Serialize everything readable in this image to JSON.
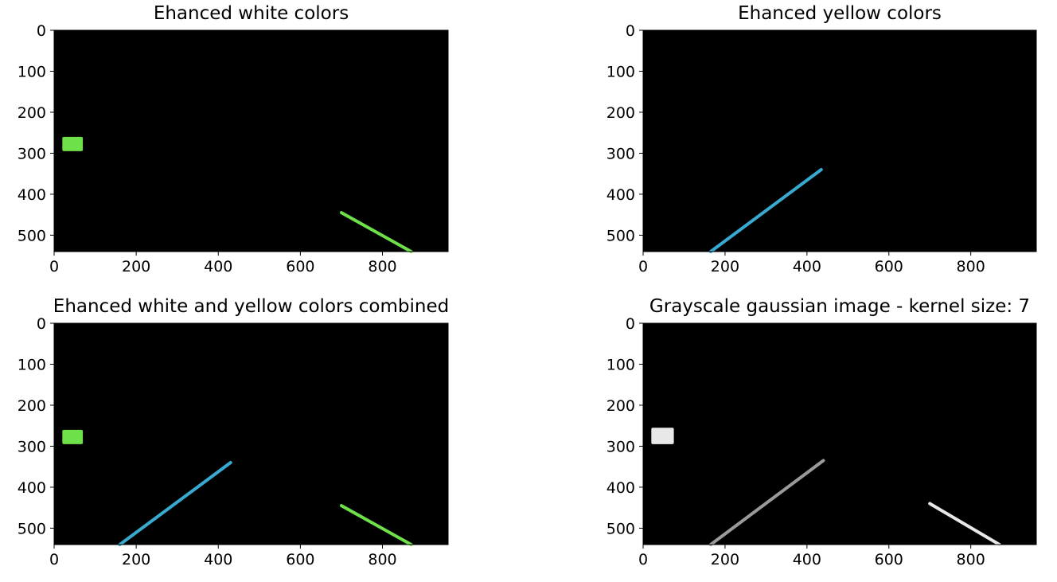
{
  "figure": {
    "panels": [
      {
        "title": "Ehanced white colors",
        "xticks": [
          "0",
          "200",
          "400",
          "600",
          "800"
        ],
        "yticks": [
          "0",
          "100",
          "200",
          "300",
          "400",
          "500"
        ]
      },
      {
        "title": "Ehanced yellow colors",
        "xticks": [
          "0",
          "200",
          "400",
          "600",
          "800"
        ],
        "yticks": [
          "0",
          "100",
          "200",
          "300",
          "400",
          "500"
        ]
      },
      {
        "title": "Ehanced white and yellow colors combined",
        "xticks": [
          "0",
          "200",
          "400",
          "600",
          "800"
        ],
        "yticks": [
          "0",
          "100",
          "200",
          "300",
          "400",
          "500"
        ]
      },
      {
        "title": "Grayscale gaussian image - kernel size: 7",
        "xticks": [
          "0",
          "200",
          "400",
          "600",
          "800"
        ],
        "yticks": [
          "0",
          "100",
          "200",
          "300",
          "400",
          "500"
        ]
      }
    ]
  },
  "chart_data": [
    {
      "type": "image",
      "title": "Ehanced white colors",
      "xlim": [
        0,
        960
      ],
      "ylim": [
        540,
        0
      ],
      "background": "#000000",
      "colors": {
        "white_mask": "#6ee04a"
      },
      "features": [
        {
          "kind": "lane_line",
          "color": "white_mask",
          "from": [
            700,
            445
          ],
          "to": [
            870,
            540
          ]
        },
        {
          "kind": "blob",
          "color": "white_mask",
          "x": [
            20,
            70
          ],
          "y": [
            260,
            295
          ]
        }
      ]
    },
    {
      "type": "image",
      "title": "Ehanced yellow colors",
      "xlim": [
        0,
        960
      ],
      "ylim": [
        540,
        0
      ],
      "background": "#000000",
      "colors": {
        "yellow_mask": "#38a9cf"
      },
      "features": [
        {
          "kind": "lane_line",
          "color": "yellow_mask",
          "from": [
            165,
            540
          ],
          "to": [
            435,
            340
          ]
        }
      ]
    },
    {
      "type": "image",
      "title": "Ehanced white and yellow colors combined",
      "xlim": [
        0,
        960
      ],
      "ylim": [
        540,
        0
      ],
      "background": "#000000",
      "colors": {
        "white_mask": "#6ee04a",
        "yellow_mask": "#38a9cf"
      },
      "features": [
        {
          "kind": "lane_line",
          "color": "yellow_mask",
          "from": [
            160,
            540
          ],
          "to": [
            430,
            340
          ]
        },
        {
          "kind": "lane_line",
          "color": "white_mask",
          "from": [
            700,
            445
          ],
          "to": [
            870,
            540
          ]
        },
        {
          "kind": "blob",
          "color": "white_mask",
          "x": [
            20,
            70
          ],
          "y": [
            260,
            295
          ]
        }
      ]
    },
    {
      "type": "image",
      "title": "Grayscale gaussian image - kernel size: 7",
      "xlim": [
        0,
        960
      ],
      "ylim": [
        540,
        0
      ],
      "background": "#000000",
      "colors": {
        "gray_left": "#9a9a9a",
        "gray_right": "#e8e8e8"
      },
      "features": [
        {
          "kind": "lane_line",
          "color": "gray_left",
          "from": [
            165,
            540
          ],
          "to": [
            440,
            335
          ]
        },
        {
          "kind": "lane_line",
          "color": "gray_right",
          "from": [
            700,
            440
          ],
          "to": [
            870,
            540
          ]
        },
        {
          "kind": "blob",
          "color": "gray_right",
          "x": [
            20,
            75
          ],
          "y": [
            255,
            295
          ]
        }
      ]
    }
  ]
}
